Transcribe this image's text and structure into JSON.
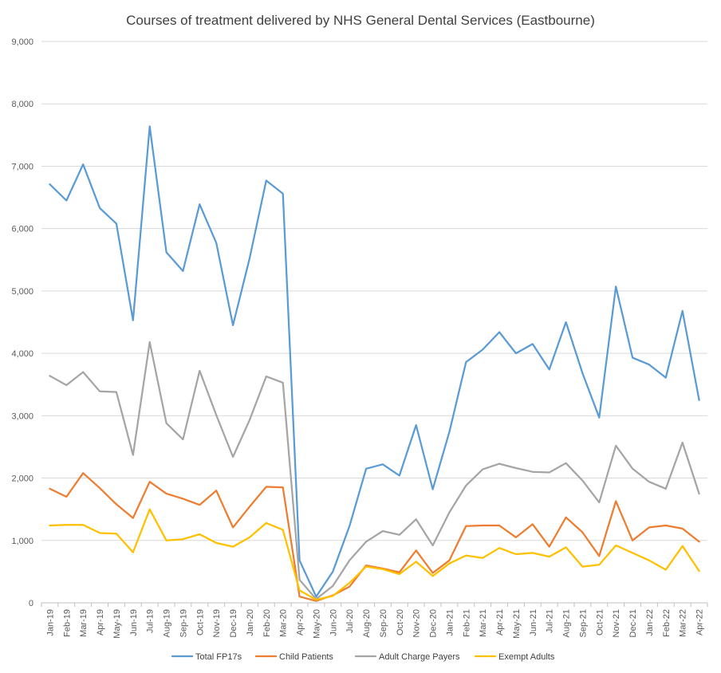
{
  "chart_data": {
    "type": "line",
    "title": "Courses of treatment delivered by NHS General Dental Services (Eastbourne)",
    "xlabel": "",
    "ylabel": "",
    "ylim": [
      0,
      9000
    ],
    "y_ticks": [
      0,
      1000,
      2000,
      3000,
      4000,
      5000,
      6000,
      7000,
      8000,
      9000
    ],
    "y_tick_labels": [
      "0",
      "1,000",
      "2,000",
      "3,000",
      "4,000",
      "5,000",
      "6,000",
      "7,000",
      "8,000",
      "9,000"
    ],
    "grid": true,
    "legend_position": "bottom",
    "categories": [
      "Jan-19",
      "Feb-19",
      "Mar-19",
      "Apr-19",
      "May-19",
      "Jun-19",
      "Jul-19",
      "Aug-19",
      "Sep-19",
      "Oct-19",
      "Nov-19",
      "Dec-19",
      "Jan-20",
      "Feb-20",
      "Mar-20",
      "Apr-20",
      "May-20",
      "Jun-20",
      "Jul-20",
      "Aug-20",
      "Sep-20",
      "Oct-20",
      "Nov-20",
      "Dec-20",
      "Jan-21",
      "Feb-21",
      "Mar-21",
      "Apr-21",
      "May-21",
      "Jun-21",
      "Jul-21",
      "Aug-21",
      "Sep-21",
      "Oct-21",
      "Nov-21",
      "Dec-21",
      "Jan-22",
      "Feb-22",
      "Mar-22",
      "Apr-22"
    ],
    "series": [
      {
        "name": "Total FP17s",
        "color": "#5b9bd5",
        "values": [
          6710,
          6450,
          7030,
          6330,
          6080,
          4530,
          7640,
          5620,
          5320,
          6390,
          5770,
          4450,
          5520,
          6770,
          6560,
          680,
          100,
          500,
          1230,
          2150,
          2220,
          2040,
          2850,
          1820,
          2740,
          3860,
          4060,
          4340,
          4000,
          4150,
          3740,
          4500,
          3680,
          2970,
          5070,
          3930,
          3820,
          3610,
          4680,
          3250
        ]
      },
      {
        "name": "Child Patients",
        "color": "#ed7d31",
        "values": [
          1830,
          1700,
          2080,
          1840,
          1580,
          1360,
          1940,
          1750,
          1670,
          1570,
          1800,
          1210,
          1540,
          1860,
          1850,
          100,
          30,
          120,
          260,
          600,
          550,
          490,
          840,
          480,
          680,
          1230,
          1240,
          1240,
          1050,
          1260,
          900,
          1370,
          1130,
          750,
          1630,
          1000,
          1210,
          1240,
          1190,
          980
        ]
      },
      {
        "name": "Adult Charge Payers",
        "color": "#a5a5a5",
        "values": [
          3640,
          3490,
          3700,
          3390,
          3380,
          2370,
          4180,
          2880,
          2620,
          3720,
          3010,
          2340,
          2930,
          3630,
          3530,
          370,
          60,
          270,
          680,
          980,
          1150,
          1090,
          1340,
          920,
          1450,
          1880,
          2140,
          2230,
          2160,
          2100,
          2090,
          2240,
          1960,
          1610,
          2520,
          2150,
          1940,
          1830,
          2570,
          1750
        ]
      },
      {
        "name": "Exempt Adults",
        "color": "#ffc000",
        "values": [
          1240,
          1250,
          1250,
          1120,
          1110,
          810,
          1500,
          1000,
          1020,
          1100,
          960,
          900,
          1050,
          1280,
          1170,
          200,
          50,
          110,
          320,
          580,
          540,
          460,
          660,
          430,
          630,
          760,
          720,
          880,
          780,
          800,
          740,
          890,
          580,
          610,
          920,
          800,
          680,
          530,
          910,
          510
        ]
      }
    ]
  }
}
